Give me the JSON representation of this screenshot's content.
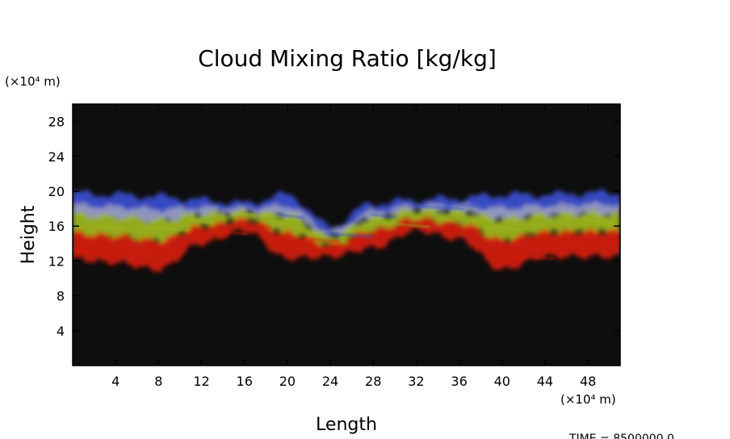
{
  "chart_data": {
    "type": "heatmap",
    "title": "Cloud Mixing Ratio [kg/kg]",
    "xlabel": "Length",
    "ylabel": "Height",
    "x_unit": "(×10⁴ m)",
    "y_unit": "(×10⁴ m)",
    "xlim": [
      0,
      51
    ],
    "ylim": [
      0,
      30
    ],
    "xticks": [
      4,
      8,
      12,
      16,
      20,
      24,
      28,
      32,
      36,
      40,
      44,
      48
    ],
    "yticks": [
      4,
      8,
      12,
      16,
      20,
      24,
      28
    ],
    "grid": false,
    "background_color": "#0e0e0e",
    "band_colors": {
      "top": "#3a4fd0",
      "upper": "#9aa0cc",
      "middle": "#a0b81e",
      "lower": "#d62010"
    },
    "cloud_layer": {
      "top_height_approx": 20,
      "base_height_approx": 11,
      "columns": [
        {
          "x": 0,
          "top": 19.8,
          "base": 12.2
        },
        {
          "x": 4,
          "top": 19.6,
          "base": 11.8
        },
        {
          "x": 8,
          "top": 19.4,
          "base": 11.0
        },
        {
          "x": 12,
          "top": 19.0,
          "base": 14.0
        },
        {
          "x": 16,
          "top": 18.6,
          "base": 15.5
        },
        {
          "x": 20,
          "top": 19.6,
          "base": 12.3
        },
        {
          "x": 24,
          "top": 16.0,
          "base": 12.5
        },
        {
          "x": 28,
          "top": 18.6,
          "base": 13.5
        },
        {
          "x": 32,
          "top": 19.0,
          "base": 15.5
        },
        {
          "x": 36,
          "top": 19.2,
          "base": 14.5
        },
        {
          "x": 40,
          "top": 19.6,
          "base": 11.0
        },
        {
          "x": 44,
          "top": 19.6,
          "base": 12.5
        },
        {
          "x": 48,
          "top": 19.8,
          "base": 12.5
        },
        {
          "x": 51,
          "top": 19.8,
          "base": 12.5
        }
      ]
    },
    "time_label": "TIME = 8500000.0"
  }
}
